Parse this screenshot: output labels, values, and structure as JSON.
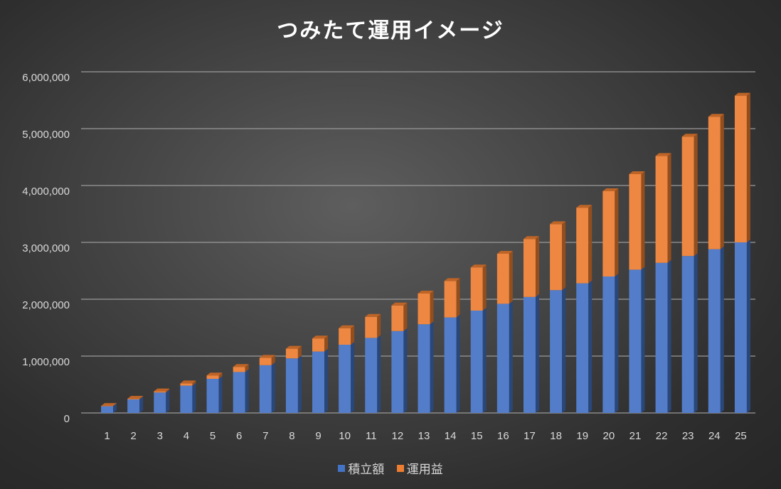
{
  "chart_data": {
    "type": "bar",
    "stacked": true,
    "style": "3d-column",
    "title": "つみたて運用イメージ",
    "xlabel": "",
    "ylabel": "",
    "ylim": [
      0,
      6000000
    ],
    "yticks": [
      0,
      1000000,
      2000000,
      3000000,
      4000000,
      5000000,
      6000000
    ],
    "ytick_labels": [
      "0",
      "1,000,000",
      "2,000,000",
      "3,000,000",
      "4,000,000",
      "5,000,000",
      "6,000,000"
    ],
    "grid": true,
    "legend_position": "bottom",
    "categories": [
      "1",
      "2",
      "3",
      "4",
      "5",
      "6",
      "7",
      "8",
      "9",
      "10",
      "11",
      "12",
      "13",
      "14",
      "15",
      "16",
      "17",
      "18",
      "19",
      "20",
      "21",
      "22",
      "23",
      "24",
      "25"
    ],
    "series": [
      {
        "name": "積立額",
        "color": "#4472C4",
        "values": [
          120000,
          240000,
          360000,
          480000,
          600000,
          720000,
          840000,
          960000,
          1080000,
          1200000,
          1320000,
          1440000,
          1560000,
          1680000,
          1800000,
          1920000,
          2040000,
          2160000,
          2280000,
          2400000,
          2520000,
          2640000,
          2760000,
          2880000,
          3000000
        ]
      },
      {
        "name": "運用益",
        "color": "#ED7D31",
        "values": [
          3000,
          10000,
          20000,
          40000,
          60000,
          90000,
          130000,
          170000,
          230000,
          290000,
          370000,
          450000,
          540000,
          640000,
          760000,
          880000,
          1020000,
          1160000,
          1330000,
          1500000,
          1680000,
          1880000,
          2100000,
          2330000,
          2580000
        ]
      }
    ]
  }
}
